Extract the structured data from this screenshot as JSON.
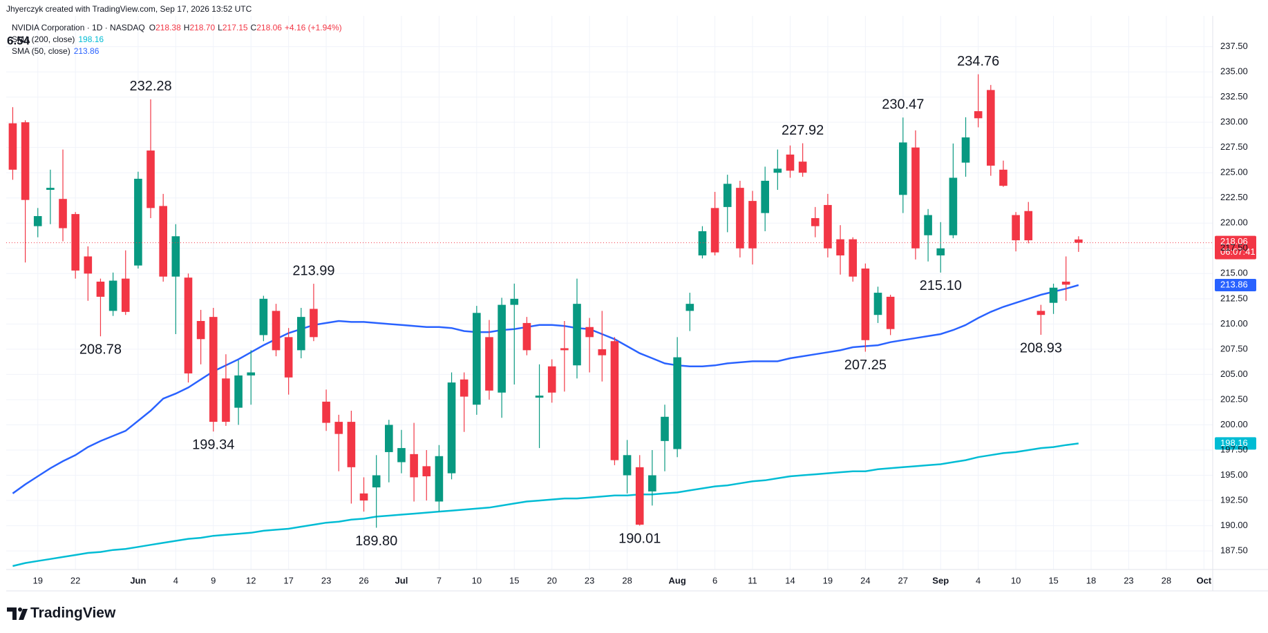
{
  "header": {
    "credit": "Jhyerczyk created with TradingView.com, Sep 17, 2026 13:52 UTC",
    "symbol": "NVIDIA Corporation · 1D · NASDAQ",
    "ohlc": [
      {
        "key": "O",
        "value": "218.38"
      },
      {
        "key": "H",
        "value": "218.70"
      },
      {
        "key": "L",
        "value": "217.15"
      },
      {
        "key": "C",
        "value": "218.06"
      }
    ],
    "change": "+4.16 (+1.94%)",
    "overlap_text": "6.54"
  },
  "footer": {
    "brand": "TradingView"
  },
  "chart_data": {
    "type": "candlestick",
    "up_color": "#089981",
    "down_color": "#f23645",
    "open": [
      229.9,
      230.0,
      219.7,
      223.3,
      222.4,
      220.9,
      216.7,
      214.2,
      211.3,
      214.5,
      215.8,
      227.2,
      221.7,
      214.7,
      214.6,
      210.3,
      210.7,
      204.6,
      201.7,
      204.9,
      208.9,
      211.3,
      208.7,
      207.4,
      211.5,
      202.3,
      200.3,
      200.3,
      193.2,
      193.8,
      197.3,
      196.3,
      197.1,
      195.9,
      192.4,
      195.2,
      204.5,
      202.0,
      208.7,
      203.2,
      211.9,
      210.1,
      202.7,
      205.8,
      207.6,
      205.9,
      209.7,
      207.5,
      208.3,
      195.0,
      195.8,
      193.4,
      198.4,
      197.6,
      211.3,
      216.8,
      221.5,
      221.6,
      223.5,
      222.2,
      221.0,
      225.0,
      226.8,
      226.1,
      220.5,
      221.8,
      218.4,
      218.4,
      215.5,
      210.9,
      212.7,
      222.8,
      227.5,
      218.8,
      216.8,
      218.8,
      226.0,
      231.1,
      233.2,
      225.3,
      220.8,
      221.2,
      211.3,
      212.1,
      214.2,
      218.38
    ],
    "high": [
      231.5,
      230.2,
      221.5,
      225.3,
      227.3,
      221.1,
      217.7,
      214.5,
      215.1,
      217.3,
      225.1,
      232.28,
      222.9,
      219.9,
      215.0,
      211.4,
      211.6,
      207.0,
      206.4,
      207.4,
      212.8,
      212.0,
      209.6,
      211.6,
      213.99,
      203.5,
      201.0,
      201.4,
      194.8,
      197.0,
      200.5,
      199.5,
      200.2,
      197.5,
      198.0,
      205.2,
      205.2,
      211.8,
      210.4,
      212.6,
      214.0,
      210.7,
      206.0,
      206.5,
      210.3,
      214.5,
      210.6,
      211.3,
      208.7,
      198.5,
      197.0,
      197.5,
      202.0,
      208.7,
      213.1,
      219.7,
      223.1,
      224.8,
      224.2,
      223.2,
      225.6,
      227.3,
      227.7,
      227.92,
      221.6,
      222.9,
      219.8,
      218.6,
      216.0,
      213.7,
      212.9,
      230.47,
      229.2,
      221.4,
      220.1,
      227.9,
      230.5,
      234.76,
      233.7,
      226.2,
      221.1,
      222.1,
      211.9,
      214.0,
      216.7,
      218.7
    ],
    "low": [
      224.3,
      216.1,
      218.6,
      219.9,
      218.2,
      214.5,
      212.3,
      208.78,
      210.8,
      210.9,
      215.5,
      220.5,
      214.2,
      209.0,
      204.2,
      206.0,
      199.34,
      199.9,
      200.0,
      202.0,
      208.3,
      206.8,
      203.0,
      206.6,
      208.3,
      199.4,
      195.4,
      192.2,
      191.4,
      189.8,
      194.3,
      195.2,
      192.4,
      192.5,
      191.4,
      194.6,
      199.3,
      201.0,
      202.5,
      200.7,
      204.0,
      206.9,
      197.7,
      202.2,
      203.3,
      204.6,
      205.2,
      204.3,
      196.0,
      193.2,
      190.01,
      192.0,
      195.4,
      196.8,
      209.3,
      216.5,
      216.8,
      219.1,
      216.6,
      215.9,
      219.2,
      223.3,
      224.5,
      224.6,
      218.6,
      216.6,
      214.9,
      214.2,
      207.25,
      210.1,
      208.9,
      221.0,
      216.4,
      216.2,
      215.1,
      218.5,
      224.6,
      229.5,
      224.7,
      223.6,
      217.2,
      218.0,
      208.93,
      211.0,
      212.3,
      217.15
    ],
    "close": [
      225.3,
      222.3,
      220.7,
      223.5,
      219.5,
      215.3,
      215.0,
      212.7,
      214.3,
      211.2,
      224.4,
      221.5,
      214.7,
      218.7,
      205.1,
      208.5,
      200.3,
      200.3,
      204.9,
      205.2,
      212.5,
      207.4,
      204.7,
      210.7,
      208.7,
      200.2,
      199.1,
      195.8,
      192.5,
      195.0,
      200.0,
      197.7,
      194.8,
      194.9,
      196.9,
      204.2,
      202.8,
      211.1,
      203.4,
      211.9,
      212.5,
      207.4,
      202.9,
      203.2,
      207.4,
      212.0,
      208.7,
      206.9,
      196.5,
      197.0,
      190.1,
      195.0,
      200.8,
      206.7,
      212.0,
      219.2,
      217.1,
      223.9,
      217.5,
      217.5,
      224.2,
      225.4,
      225.2,
      225.0,
      219.7,
      217.5,
      216.8,
      214.7,
      208.4,
      213.1,
      209.5,
      228.0,
      217.5,
      220.8,
      217.5,
      224.5,
      228.5,
      230.4,
      225.7,
      223.7,
      218.3,
      218.3,
      210.9,
      213.6,
      213.9,
      218.06
    ],
    "countdown": "06:07:41",
    "series": [
      {
        "name": "SMA (200, close)",
        "color": "#00bcd4",
        "values": [
          186.0,
          186.3,
          186.5,
          186.7,
          186.9,
          187.1,
          187.3,
          187.4,
          187.6,
          187.7,
          187.9,
          188.1,
          188.3,
          188.5,
          188.7,
          188.8,
          189.0,
          189.1,
          189.2,
          189.3,
          189.5,
          189.6,
          189.7,
          189.9,
          190.1,
          190.3,
          190.4,
          190.6,
          190.7,
          190.9,
          191.0,
          191.1,
          191.2,
          191.3,
          191.4,
          191.5,
          191.6,
          191.7,
          191.8,
          192.0,
          192.2,
          192.4,
          192.5,
          192.6,
          192.7,
          192.7,
          192.8,
          192.9,
          193.0,
          193.0,
          193.1,
          193.1,
          193.2,
          193.3,
          193.5,
          193.7,
          193.9,
          194.0,
          194.2,
          194.4,
          194.5,
          194.7,
          194.9,
          195.0,
          195.1,
          195.2,
          195.3,
          195.4,
          195.4,
          195.6,
          195.7,
          195.8,
          195.9,
          196.0,
          196.1,
          196.3,
          196.5,
          196.8,
          197.0,
          197.2,
          197.3,
          197.5,
          197.7,
          197.8,
          198.0,
          198.16
        ]
      },
      {
        "name": "SMA (50, close)",
        "color": "#2962ff",
        "values": [
          193.2,
          194.1,
          194.9,
          195.7,
          196.4,
          197.0,
          197.8,
          198.4,
          198.9,
          199.4,
          200.4,
          201.4,
          202.6,
          203.1,
          203.7,
          204.5,
          205.3,
          205.9,
          206.5,
          207.2,
          207.9,
          208.5,
          209.1,
          209.5,
          209.9,
          210.1,
          210.3,
          210.2,
          210.2,
          210.1,
          210.0,
          209.9,
          209.8,
          209.7,
          209.7,
          209.6,
          209.3,
          209.2,
          209.2,
          209.4,
          209.5,
          209.7,
          209.9,
          209.9,
          209.8,
          209.6,
          209.5,
          209.0,
          208.5,
          207.8,
          207.1,
          206.6,
          206.1,
          205.9,
          205.8,
          205.8,
          205.9,
          206.1,
          206.2,
          206.3,
          206.3,
          206.3,
          206.6,
          206.8,
          207.0,
          207.2,
          207.4,
          207.7,
          207.8,
          207.9,
          208.2,
          208.4,
          208.6,
          208.8,
          209.0,
          209.4,
          209.9,
          210.6,
          211.2,
          211.7,
          212.1,
          212.5,
          212.9,
          213.2,
          213.5,
          213.86
        ]
      }
    ],
    "annotations": [
      {
        "x": 11,
        "y": 232.28,
        "text": "232.28",
        "position": "above"
      },
      {
        "x": 7,
        "y": 208.78,
        "text": "208.78",
        "position": "below"
      },
      {
        "x": 16,
        "y": 199.34,
        "text": "199.34",
        "position": "below"
      },
      {
        "x": 24,
        "y": 213.99,
        "text": "213.99",
        "position": "above"
      },
      {
        "x": 29,
        "y": 189.8,
        "text": "189.80",
        "position": "below"
      },
      {
        "x": 50,
        "y": 190.01,
        "text": "190.01",
        "position": "below"
      },
      {
        "x": 63,
        "y": 227.92,
        "text": "227.92",
        "position": "above"
      },
      {
        "x": 68,
        "y": 207.25,
        "text": "207.25",
        "position": "below"
      },
      {
        "x": 71,
        "y": 230.47,
        "text": "230.47",
        "position": "above"
      },
      {
        "x": 74,
        "y": 215.1,
        "text": "215.10",
        "position": "below"
      },
      {
        "x": 77,
        "y": 234.76,
        "text": "234.76",
        "position": "above"
      },
      {
        "x": 82,
        "y": 208.93,
        "text": "208.93",
        "position": "below"
      }
    ],
    "xlim": [
      -0.52,
      95.7
    ],
    "xticks": [
      {
        "value": 2,
        "label": "19"
      },
      {
        "value": 5,
        "label": "22"
      },
      {
        "value": 10,
        "label": "Jun"
      },
      {
        "value": 13,
        "label": "4"
      },
      {
        "value": 16,
        "label": "9"
      },
      {
        "value": 19,
        "label": "12"
      },
      {
        "value": 22,
        "label": "17"
      },
      {
        "value": 25,
        "label": "23"
      },
      {
        "value": 28,
        "label": "26"
      },
      {
        "value": 31,
        "label": "Jul"
      },
      {
        "value": 34,
        "label": "7"
      },
      {
        "value": 37,
        "label": "10"
      },
      {
        "value": 40,
        "label": "15"
      },
      {
        "value": 43,
        "label": "20"
      },
      {
        "value": 46,
        "label": "23"
      },
      {
        "value": 49,
        "label": "28"
      },
      {
        "value": 53,
        "label": "Aug"
      },
      {
        "value": 56,
        "label": "6"
      },
      {
        "value": 59,
        "label": "11"
      },
      {
        "value": 62,
        "label": "14"
      },
      {
        "value": 65,
        "label": "19"
      },
      {
        "value": 68,
        "label": "24"
      },
      {
        "value": 71,
        "label": "27"
      },
      {
        "value": 74,
        "label": "Sep"
      },
      {
        "value": 77,
        "label": "4"
      },
      {
        "value": 80,
        "label": "10"
      },
      {
        "value": 83,
        "label": "15"
      },
      {
        "value": 86,
        "label": "18"
      },
      {
        "value": 89,
        "label": "23"
      },
      {
        "value": 92,
        "label": "28"
      },
      {
        "value": 95,
        "label": "Oct"
      }
    ],
    "ylim": [
      185.66,
      240.55
    ],
    "yticks": [
      {
        "value": 187.5,
        "label": "187.50"
      },
      {
        "value": 190,
        "label": "190.00"
      },
      {
        "value": 192.5,
        "label": "192.50"
      },
      {
        "value": 195,
        "label": "195.00"
      },
      {
        "value": 197.5,
        "label": "197.50"
      },
      {
        "value": 200,
        "label": "200.00"
      },
      {
        "value": 202.5,
        "label": "202.50"
      },
      {
        "value": 205,
        "label": "205.00"
      },
      {
        "value": 207.5,
        "label": "207.50"
      },
      {
        "value": 210,
        "label": "210.00"
      },
      {
        "value": 212.5,
        "label": "212.50"
      },
      {
        "value": 215,
        "label": "215.00"
      },
      {
        "value": 217.5,
        "label": "217.50"
      },
      {
        "value": 220,
        "label": "220.00"
      },
      {
        "value": 222.5,
        "label": "222.50"
      },
      {
        "value": 225,
        "label": "225.00"
      },
      {
        "value": 227.5,
        "label": "227.50"
      },
      {
        "value": 230,
        "label": "230.00"
      },
      {
        "value": 232.5,
        "label": "232.50"
      },
      {
        "value": 235,
        "label": "235.00"
      },
      {
        "value": 237.5,
        "label": "237.50"
      }
    ],
    "grid": true
  }
}
